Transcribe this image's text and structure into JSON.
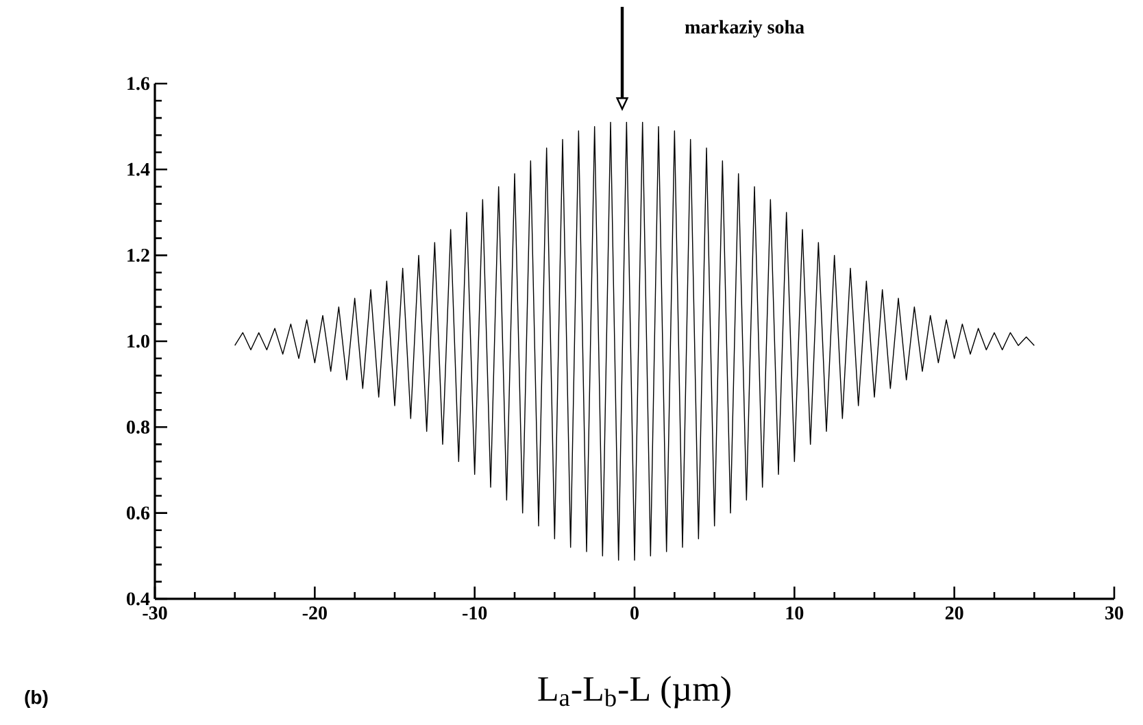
{
  "chart_data": {
    "type": "line",
    "xlabel": "L$_{a}$-L$_{b}$-L (µm)",
    "annotations": [
      "markaziy soha",
      "(b)"
    ],
    "x": [
      -25,
      -24.5,
      -24,
      -23.5,
      -23,
      -22.5,
      -22,
      -21.5,
      -21,
      -20.5,
      -20,
      -19.5,
      -19,
      -18.5,
      -18,
      -17.5,
      -17,
      -16.5,
      -16,
      -15.5,
      -15,
      -14.5,
      -14,
      -13.5,
      -13,
      -12.5,
      -12,
      -11.5,
      -11,
      -10.5,
      -10,
      -9.5,
      -9,
      -8.5,
      -8,
      -7.5,
      -7,
      -6.5,
      -6,
      -5.5,
      -5,
      -4.5,
      -4,
      -3.5,
      -3,
      -2.5,
      -2,
      -1.5,
      -1,
      -0.5,
      0,
      0.5,
      1,
      1.5,
      2,
      2.5,
      3,
      3.5,
      4,
      4.5,
      5,
      5.5,
      6,
      6.5,
      7,
      7.5,
      8,
      8.5,
      9,
      9.5,
      10,
      10.5,
      11,
      11.5,
      12,
      12.5,
      13,
      13.5,
      14,
      14.5,
      15,
      15.5,
      16,
      16.5,
      17,
      17.5,
      18,
      18.5,
      19,
      19.5,
      20,
      20.5,
      21,
      21.5,
      22,
      22.5,
      23,
      23.5,
      24,
      24.5,
      25
    ],
    "series": [
      {
        "color": "#000000",
        "values": [
          0.99,
          1.02,
          0.98,
          1.02,
          0.98,
          1.03,
          0.97,
          1.04,
          0.96,
          1.05,
          0.95,
          1.06,
          0.93,
          1.08,
          0.91,
          1.1,
          0.89,
          1.12,
          0.87,
          1.14,
          0.85,
          1.17,
          0.82,
          1.2,
          0.79,
          1.23,
          0.76,
          1.26,
          0.72,
          1.3,
          0.69,
          1.33,
          0.66,
          1.36,
          0.63,
          1.39,
          0.6,
          1.42,
          0.57,
          1.45,
          0.54,
          1.47,
          0.52,
          1.49,
          0.51,
          1.5,
          0.5,
          1.51,
          0.49,
          1.51,
          0.49,
          1.51,
          0.5,
          1.5,
          0.51,
          1.49,
          0.52,
          1.47,
          0.54,
          1.45,
          0.57,
          1.42,
          0.6,
          1.39,
          0.63,
          1.36,
          0.66,
          1.33,
          0.69,
          1.3,
          0.72,
          1.26,
          0.76,
          1.23,
          0.79,
          1.2,
          0.82,
          1.17,
          0.85,
          1.14,
          0.87,
          1.12,
          0.89,
          1.1,
          0.91,
          1.08,
          0.93,
          1.06,
          0.95,
          1.05,
          0.96,
          1.04,
          0.97,
          1.03,
          0.98,
          1.02,
          0.98,
          1.02,
          0.99,
          1.01,
          0.99
        ]
      }
    ],
    "xlim": [
      -30,
      30
    ],
    "xticks": [
      -30,
      -20,
      -10,
      0,
      10,
      20,
      30
    ],
    "ylim": [
      0.4,
      1.6
    ],
    "yticks": [
      0.4,
      0.6,
      0.8,
      {
        "value": 1,
        "label": "1.0"
      },
      1.2,
      1.4,
      1.6
    ],
    "grid": false,
    "marker": "none",
    "line_style": "solid"
  }
}
